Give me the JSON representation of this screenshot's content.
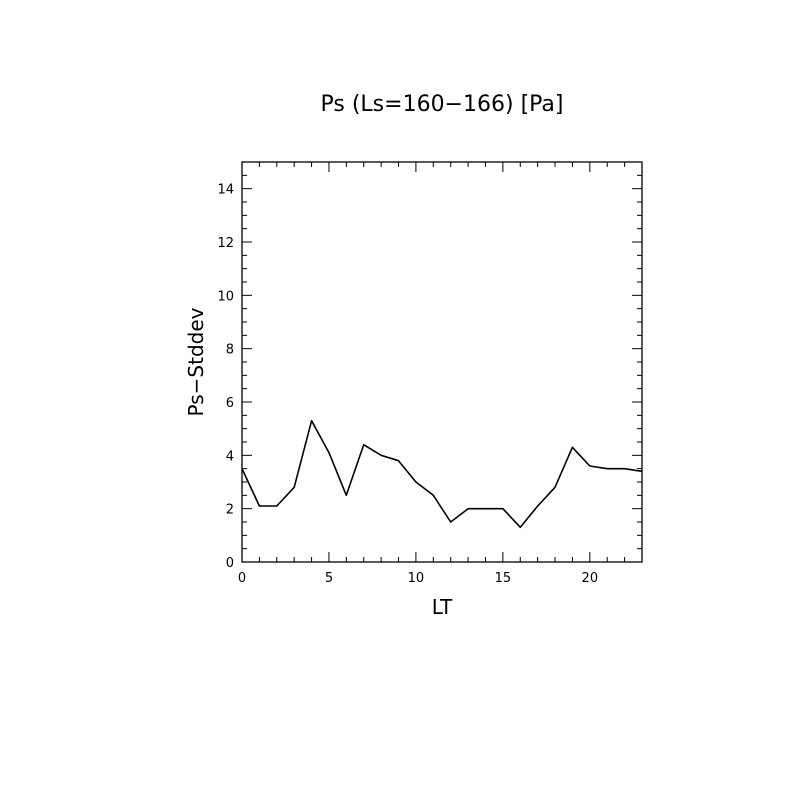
{
  "chart_data": {
    "type": "line",
    "title": "Ps (Ls=160−166) [Pa]",
    "xlabel": "LT",
    "ylabel": "Ps−Stddev",
    "xlim": [
      0,
      23
    ],
    "ylim": [
      0,
      15
    ],
    "xticks": [
      0,
      5,
      10,
      15,
      20
    ],
    "yticks": [
      0,
      2,
      4,
      6,
      8,
      10,
      12,
      14
    ],
    "grid": false,
    "series": [
      {
        "x": [
          0,
          1,
          2,
          3,
          4,
          5,
          6,
          7,
          8,
          9,
          10,
          11,
          12,
          13,
          14,
          15,
          16,
          17,
          18,
          19,
          20,
          21,
          22,
          23
        ],
        "values": [
          3.5,
          2.1,
          2.1,
          2.8,
          5.3,
          4.1,
          2.5,
          4.4,
          4.0,
          3.8,
          3.0,
          2.5,
          1.5,
          2.0,
          2.0,
          2.0,
          1.3,
          2.1,
          2.8,
          4.3,
          3.6,
          3.5,
          3.5,
          3.4
        ],
        "color": "#000000"
      }
    ]
  }
}
